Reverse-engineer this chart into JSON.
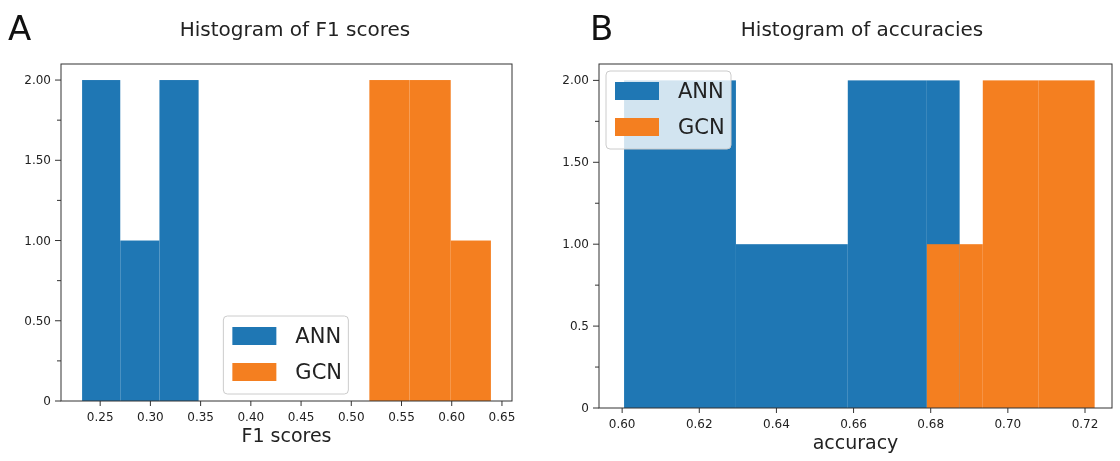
{
  "chart_data": [
    {
      "type": "histogram",
      "title": "Histogram of F1 scores",
      "xlabel": "F1 scores",
      "annotations": [
        "A"
      ],
      "legend": "bottom",
      "xlim": [
        0.211,
        0.66
      ],
      "xticks": [
        {
          "value": 0.25,
          "label": "0.25"
        },
        {
          "value": 0.3,
          "label": "0.30"
        },
        {
          "value": 0.35,
          "label": "0.35"
        },
        {
          "value": 0.4,
          "label": "0.40"
        },
        {
          "value": 0.45,
          "label": "0.45"
        },
        {
          "value": 0.5,
          "label": "0.50"
        },
        {
          "value": 0.55,
          "label": "0.55"
        },
        {
          "value": 0.6,
          "label": "0.60"
        },
        {
          "value": 0.65,
          "label": "0.65"
        }
      ],
      "ylim": [
        0,
        2.1
      ],
      "yticks": [
        {
          "value": 0,
          "label": "0"
        },
        {
          "value": 0.25,
          "label": null
        },
        {
          "value": 0.5,
          "label": "0.50"
        },
        {
          "value": 0.75,
          "label": null
        },
        {
          "value": 1,
          "label": "1.00"
        },
        {
          "value": 1.25,
          "label": null
        },
        {
          "value": 1.5,
          "label": "1.50"
        },
        {
          "value": 1.75,
          "label": null
        },
        {
          "value": 2,
          "label": "2.00"
        }
      ],
      "bins": [
        0.232,
        0.27,
        0.309,
        0.348,
        0.518,
        0.558,
        0.599,
        0.639
      ],
      "series": [
        {
          "name": "ANN",
          "color": "#1f77b4",
          "values": [
            2,
            1,
            2,
            null,
            null,
            null,
            null
          ]
        },
        {
          "name": "GCN",
          "color": "#f47f20",
          "values": [
            null,
            null,
            null,
            null,
            2,
            2,
            1
          ]
        }
      ]
    },
    {
      "type": "histogram",
      "title": "Histogram of accuracies",
      "xlabel": "accuracy",
      "annotations": [
        "B"
      ],
      "legend": "top left",
      "xlim": [
        0.594,
        0.727
      ],
      "xticks": [
        {
          "value": 0.6,
          "label": "0.60"
        },
        {
          "value": 0.62,
          "label": "0.62"
        },
        {
          "value": 0.64,
          "label": "0.64"
        },
        {
          "value": 0.66,
          "label": "0.66"
        },
        {
          "value": 0.68,
          "label": "0.68"
        },
        {
          "value": 0.7,
          "label": "0.70"
        },
        {
          "value": 0.72,
          "label": "0.72"
        }
      ],
      "ylim": [
        0,
        2.1
      ],
      "yticks": [
        {
          "value": 0,
          "label": "0"
        },
        {
          "value": 0.25,
          "label": null
        },
        {
          "value": 0.5,
          "label": "0.5"
        },
        {
          "value": 0.75,
          "label": null
        },
        {
          "value": 1,
          "label": "1.00"
        },
        {
          "value": 1.25,
          "label": null
        },
        {
          "value": 1.5,
          "label": "1.50"
        },
        {
          "value": 1.75,
          "label": null
        },
        {
          "value": 2,
          "label": "2.00"
        }
      ],
      "bins": [
        0.6005,
        0.6295,
        0.6585,
        0.679,
        0.6875,
        0.6935,
        0.708,
        0.7225
      ],
      "series": [
        {
          "name": "ANN",
          "color": "#1f77b4",
          "values": [
            2,
            1,
            2,
            2,
            null,
            null,
            null
          ]
        },
        {
          "name": "GCN",
          "color": "#f47f20",
          "values": [
            null,
            null,
            null,
            1,
            1,
            2,
            2
          ]
        }
      ]
    }
  ]
}
